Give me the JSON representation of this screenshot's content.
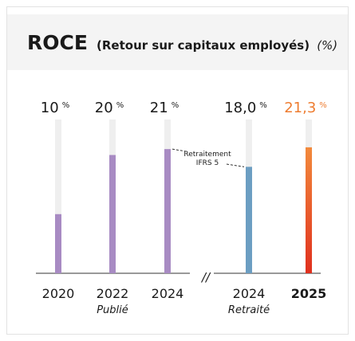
{
  "chart_data": {
    "type": "bar",
    "title": "ROCE",
    "subtitle": "(Retour sur capitaux employés)",
    "unit_label": "(%)",
    "categories": [
      "2020",
      "2022",
      "2024",
      "2024",
      "2025"
    ],
    "category_notes": [
      null,
      "Publié",
      null,
      "Retraité",
      null
    ],
    "values": [
      10,
      20,
      21,
      18.0,
      21.3
    ],
    "value_labels": [
      "10",
      "20",
      "21",
      "18,0",
      "21,3"
    ],
    "unit": "%",
    "colors": [
      "#a88bc3",
      "#a88bc3",
      "#a88bc3",
      "#6c9ec2",
      [
        "#f28a3c",
        "#e0301e"
      ]
    ],
    "highlight": [
      false,
      false,
      false,
      false,
      true
    ],
    "highlight_color": "#ee7d31",
    "break_label": "//",
    "annotation": "Retraitement IFRS 5",
    "ylim": [
      0,
      26
    ]
  }
}
